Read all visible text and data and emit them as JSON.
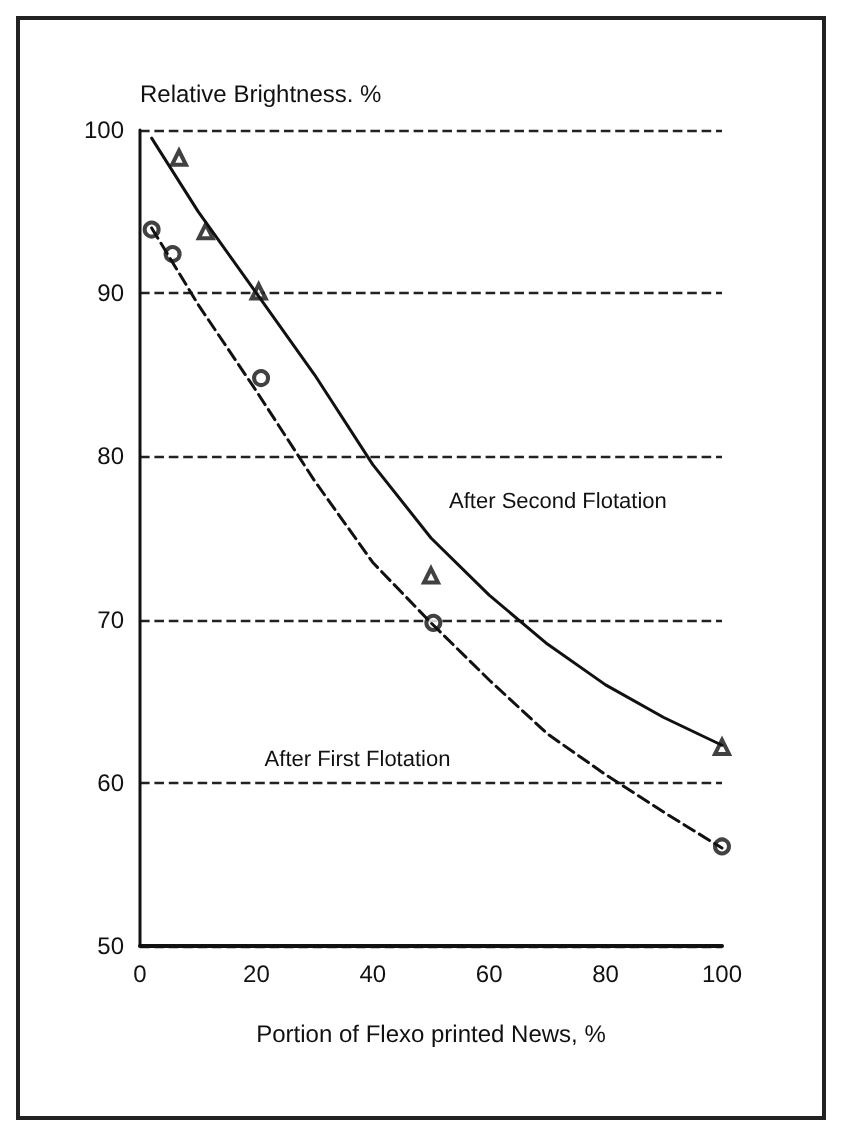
{
  "chart_data": {
    "type": "line",
    "xlabel": "Portion of Flexo printed News, %",
    "ylabel": "Relative Brightness. %",
    "xlim": [
      0,
      100
    ],
    "xticks": [
      0,
      20,
      40,
      60,
      80,
      100
    ],
    "ylim": [
      50,
      100
    ],
    "yticks": [
      50,
      60,
      70,
      80,
      90,
      100
    ],
    "grid": "y",
    "series": [
      {
        "color": "#111111",
        "line_style": "solid",
        "marker": "none",
        "x": [
          2,
          10,
          20,
          30,
          40,
          50,
          60,
          70,
          80,
          90,
          100
        ],
        "values": [
          99.5,
          95,
          90,
          85,
          79.5,
          75,
          71.5,
          68.5,
          66,
          64,
          62.3
        ]
      },
      {
        "color": "#111111",
        "line_style": "dashed",
        "marker": "none",
        "x": [
          2,
          10,
          20,
          30,
          40,
          50,
          60,
          70,
          80,
          90,
          100
        ],
        "values": [
          94,
          89.3,
          84,
          78.5,
          73.5,
          69.8,
          66.3,
          63,
          60.5,
          58.2,
          56
        ]
      },
      {
        "type": "scatter",
        "color": "#111111",
        "marker": "triangle",
        "x": [
          6.7,
          11.3,
          20.4,
          50,
          100
        ],
        "values": [
          98.3,
          93.8,
          90.1,
          72.7,
          62.2
        ]
      },
      {
        "type": "scatter",
        "color": "#111111",
        "marker": "circle",
        "x": [
          2,
          5.6,
          20.8,
          50.4,
          100
        ],
        "values": [
          93.9,
          92.4,
          84.8,
          69.8,
          56.1
        ]
      }
    ],
    "annotations": [
      "After Second Flotation",
      "After First Flotation"
    ]
  }
}
